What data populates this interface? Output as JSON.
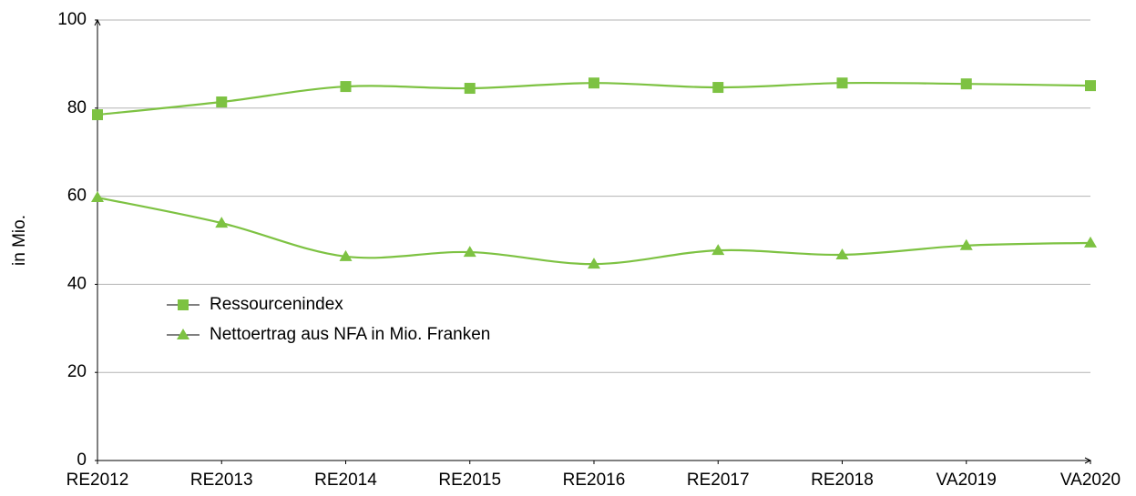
{
  "chart_data": {
    "type": "line",
    "y_label": "in Mio.",
    "categories": [
      "RE2012",
      "RE2013",
      "RE2014",
      "RE2015",
      "RE2016",
      "RE2017",
      "RE2018",
      "VA2019",
      "VA2020"
    ],
    "series": [
      {
        "name": "Ressourcenindex",
        "color": "#7dc242",
        "marker": "square",
        "values": [
          78.5,
          81.4,
          84.9,
          84.5,
          85.7,
          84.7,
          85.7,
          85.5,
          85.1
        ]
      },
      {
        "name": "Nettoertrag aus NFA in Mio. Franken",
        "color": "#7dc242",
        "marker": "triangle",
        "values": [
          59.7,
          53.9,
          46.3,
          47.3,
          44.6,
          47.7,
          46.7,
          48.8,
          49.4
        ]
      }
    ],
    "ylim": [
      0,
      100
    ],
    "yticks": [
      0,
      20,
      40,
      60,
      80,
      100
    ],
    "grid": true,
    "legend": "left"
  }
}
